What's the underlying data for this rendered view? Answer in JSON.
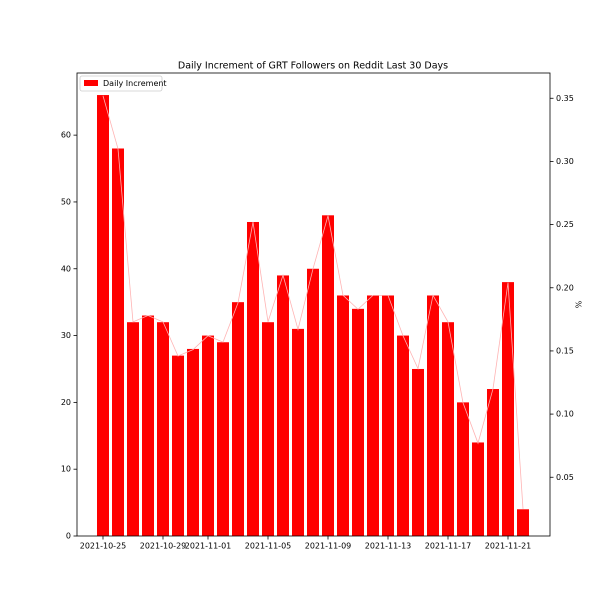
{
  "chart_data": {
    "type": "bar",
    "title": "Daily Increment of GRT Followers on Reddit Last 30 Days",
    "categories": [
      "2021-10-25",
      null,
      null,
      null,
      "2021-10-29",
      null,
      null,
      "2021-11-01",
      null,
      null,
      null,
      "2021-11-05",
      null,
      null,
      null,
      "2021-11-09",
      null,
      null,
      null,
      "2021-11-13",
      null,
      null,
      null,
      "2021-11-17",
      null,
      null,
      null,
      "2021-11-21",
      null
    ],
    "series": [
      {
        "name": "Daily Increment",
        "color": "#ff0000",
        "values": [
          66,
          58,
          32,
          33,
          32,
          27,
          28,
          30,
          29,
          35,
          47,
          32,
          39,
          31,
          40,
          48,
          36,
          34,
          36,
          36,
          30,
          25,
          36,
          32,
          20,
          14,
          22,
          38,
          4
        ]
      },
      {
        "color": "#ffb3b3",
        "axis": "y2",
        "values": [
          0.352,
          0.31,
          0.173,
          0.178,
          0.173,
          0.146,
          0.151,
          0.162,
          0.157,
          0.188,
          0.252,
          0.173,
          0.21,
          0.167,
          0.215,
          0.257,
          0.194,
          0.183,
          0.194,
          0.194,
          0.162,
          0.136,
          0.194,
          0.173,
          0.109,
          0.077,
          0.12,
          0.204,
          0.025
        ]
      }
    ],
    "ylim": [
      0,
      69.3
    ],
    "yticks": [
      0,
      10,
      20,
      30,
      40,
      50,
      60
    ],
    "y2lim": [
      0.0035,
      0.37
    ],
    "y2ticks": [
      {
        "value": 0.05,
        "label": "0.05"
      },
      {
        "value": 0.1,
        "label": "0.10"
      },
      {
        "value": 0.15,
        "label": "0.15"
      },
      {
        "value": 0.2,
        "label": "0.20"
      },
      {
        "value": 0.25,
        "label": "0.25"
      },
      {
        "value": 0.3,
        "label": "0.30"
      },
      {
        "value": 0.35,
        "label": "0.35"
      }
    ],
    "y2label": "%",
    "legend": "upper left"
  }
}
